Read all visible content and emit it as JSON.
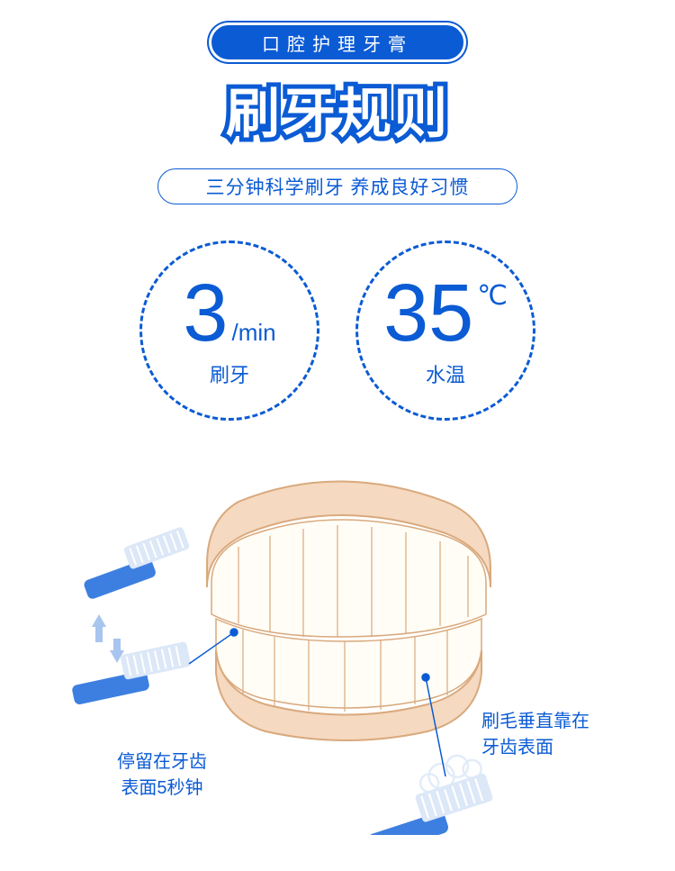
{
  "header": {
    "pill": "口腔护理牙膏"
  },
  "title": "刷牙规则",
  "subtitle": "三分钟科学刷牙 养成良好习惯",
  "metrics": [
    {
      "value": "3",
      "unit": "/min",
      "label": "刷牙"
    },
    {
      "value": "35",
      "unit": "℃",
      "label": "水温"
    }
  ],
  "captions": {
    "left": "停留在牙齿\n表面5秒钟",
    "right": "刷毛垂直靠在\n牙齿表面"
  },
  "colors": {
    "primary": "#0b5bd4",
    "white": "#ffffff",
    "gum": "#f5d9c0",
    "gum_dark": "#d9a97d",
    "brush": "#3d7fe0",
    "bristle": "#dce8f7",
    "arrow": "#a8c5ef"
  },
  "type": "infographic"
}
